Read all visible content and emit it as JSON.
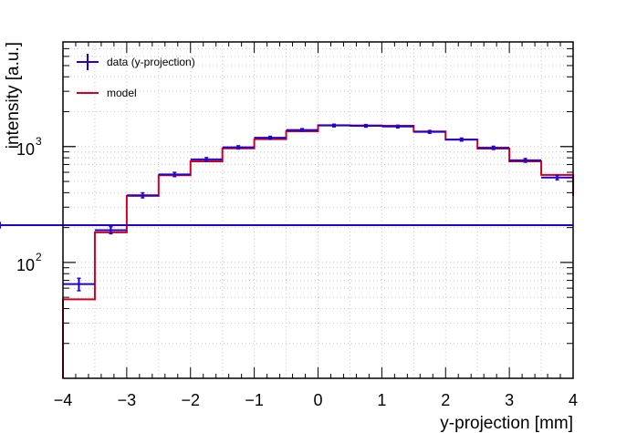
{
  "chart_data": {
    "type": "line",
    "xlabel": "y-projection [mm]",
    "ylabel": "intensity [a.u.]",
    "xlim": [
      -4,
      4
    ],
    "ylim": [
      10,
      8000
    ],
    "y_scale": "log",
    "grid": true,
    "legend_position": "top-left",
    "x_ticks": [
      "−4",
      "−3",
      "−2",
      "−1",
      "0",
      "1",
      "2",
      "3",
      "4"
    ],
    "y_tick_labels": [
      {
        "base": "10",
        "exp": "2",
        "value": 100
      },
      {
        "base": "10",
        "exp": "3",
        "value": 1000
      }
    ],
    "bin_edges": [
      -4,
      -3.5,
      -3,
      -2.5,
      -2,
      -1.5,
      -1,
      -0.5,
      0,
      0.5,
      1,
      1.5,
      2,
      2.5,
      3,
      3.5,
      4
    ],
    "series": [
      {
        "name": "data (y-projection)",
        "color": "#2200cc",
        "style": "points-with-errors",
        "values": [
          65,
          190,
          380,
          575,
          775,
          985,
          1190,
          1390,
          1520,
          1510,
          1490,
          1340,
          1150,
          975,
          760,
          540,
          210
        ],
        "errors": [
          8,
          13,
          19,
          24,
          28,
          31,
          35,
          37,
          39,
          39,
          39,
          37,
          34,
          31,
          28,
          23,
          14
        ]
      },
      {
        "name": "model",
        "color": "#cc0022",
        "style": "step",
        "values": [
          48,
          182,
          375,
          565,
          745,
          965,
          1160,
          1355,
          1530,
          1520,
          1510,
          1350,
          1150,
          960,
          745,
          570,
          375
        ]
      }
    ]
  }
}
